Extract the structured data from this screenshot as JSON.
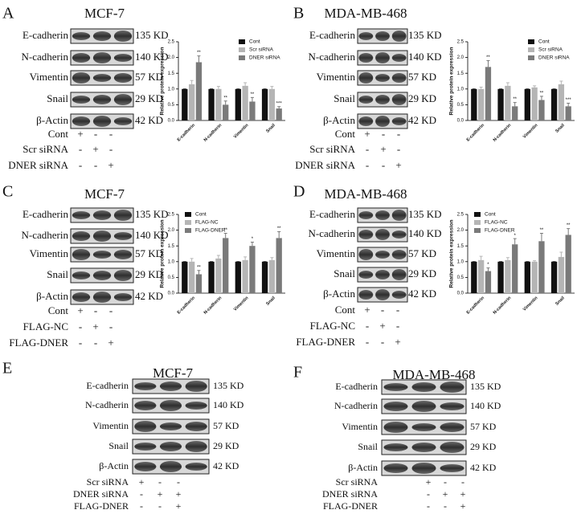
{
  "panels": [
    {
      "letter": "A",
      "title": "MCF-7",
      "proteins": [
        {
          "name": "E-cadherin",
          "size": "135 KD"
        },
        {
          "name": "N-cadherin",
          "size": "140 KD"
        },
        {
          "name": "Vimentin",
          "size": "57 KD"
        },
        {
          "name": "Snail",
          "size": "29 KD"
        },
        {
          "name": "β-Actin",
          "size": "42 KD"
        }
      ],
      "conditions": [
        {
          "label": "Cont",
          "signs": [
            "+",
            "-",
            "-"
          ]
        },
        {
          "label": "Scr siRNA",
          "signs": [
            "-",
            "+",
            "-"
          ]
        },
        {
          "label": "DNER siRNA",
          "signs": [
            "-",
            "-",
            "+"
          ]
        }
      ]
    },
    {
      "letter": "B",
      "title": "MDA-MB-468",
      "proteins": [
        {
          "name": "E-cadherin",
          "size": "135 KD"
        },
        {
          "name": "N-cadherin",
          "size": "140 KD"
        },
        {
          "name": "Vimentin",
          "size": "57 KD"
        },
        {
          "name": "Snail",
          "size": "29 KD"
        },
        {
          "name": "β-Actin",
          "size": "42 KD"
        }
      ],
      "conditions": [
        {
          "label": "Cont",
          "signs": [
            "+",
            "-",
            "-"
          ]
        },
        {
          "label": "Scr siRNA",
          "signs": [
            "-",
            "+",
            "-"
          ]
        },
        {
          "label": "DNER siRNA",
          "signs": [
            "-",
            "-",
            "+"
          ]
        }
      ]
    },
    {
      "letter": "C",
      "title": "MCF-7",
      "proteins": [
        {
          "name": "E-cadherin",
          "size": "135 KD"
        },
        {
          "name": "N-cadherin",
          "size": "140 KD"
        },
        {
          "name": "Vimentin",
          "size": "57 KD"
        },
        {
          "name": "Snail",
          "size": "29 KD"
        },
        {
          "name": "β-Actin",
          "size": "42 KD"
        }
      ],
      "conditions": [
        {
          "label": "Cont",
          "signs": [
            "+",
            "-",
            "-"
          ]
        },
        {
          "label": "FLAG-NC",
          "signs": [
            "-",
            "+",
            "-"
          ]
        },
        {
          "label": "FLAG-DNER",
          "signs": [
            "-",
            "-",
            "+"
          ]
        }
      ]
    },
    {
      "letter": "D",
      "title": "MDA-MB-468",
      "proteins": [
        {
          "name": "E-cadherin",
          "size": "135 KD"
        },
        {
          "name": "N-cadherin",
          "size": "140 KD"
        },
        {
          "name": "Vimentin",
          "size": "57 KD"
        },
        {
          "name": "Snail",
          "size": "29 KD"
        },
        {
          "name": "β-Actin",
          "size": "42 KD"
        }
      ],
      "conditions": [
        {
          "label": "Cont",
          "signs": [
            "+",
            "-",
            "-"
          ]
        },
        {
          "label": "FLAG-NC",
          "signs": [
            "-",
            "+",
            "-"
          ]
        },
        {
          "label": "FLAG-DNER",
          "signs": [
            "-",
            "-",
            "+"
          ]
        }
      ]
    },
    {
      "letter": "E",
      "title": "MCF-7",
      "proteins": [
        {
          "name": "E-cadherin",
          "size": "135 KD"
        },
        {
          "name": "N-cadherin",
          "size": "140 KD"
        },
        {
          "name": "Vimentin",
          "size": "57 KD"
        },
        {
          "name": "Snail",
          "size": "29 KD"
        },
        {
          "name": "β-Actin",
          "size": "42 KD"
        }
      ],
      "conditions": [
        {
          "label": "Scr siRNA",
          "signs": [
            "+",
            "-",
            "-"
          ]
        },
        {
          "label": "DNER siRNA",
          "signs": [
            "-",
            "+",
            "+"
          ]
        },
        {
          "label": "FLAG-DNER",
          "signs": [
            "-",
            "-",
            "+"
          ]
        }
      ]
    },
    {
      "letter": "F",
      "title": "MDA-MB-468",
      "proteins": [
        {
          "name": "E-cadherin",
          "size": "135 KD"
        },
        {
          "name": "N-cadherin",
          "size": "140 KD"
        },
        {
          "name": "Vimentin",
          "size": "57 KD"
        },
        {
          "name": "Snail",
          "size": "29 KD"
        },
        {
          "name": "β-Actin",
          "size": "42 KD"
        }
      ],
      "conditions": [
        {
          "label": "Scr siRNA",
          "signs": [
            "+",
            "-",
            "-"
          ]
        },
        {
          "label": "DNER siRNA",
          "signs": [
            "-",
            "+",
            "+"
          ]
        },
        {
          "label": "FLAG-DNER",
          "signs": [
            "-",
            "-",
            "+"
          ]
        }
      ]
    }
  ],
  "chart_data": [
    {
      "type": "bar",
      "y_label": "Relative protein expression",
      "legend": "upper right",
      "categories": [
        "E-cadherin",
        "N-cadherin",
        "Vimentin",
        "Snail"
      ],
      "ylim": [
        0,
        2.5
      ],
      "yticks": [
        {
          "value": 0,
          "label": "0.0"
        },
        0.5,
        {
          "value": 1,
          "label": "1.0"
        },
        1.5,
        {
          "value": 2,
          "label": "2.0"
        },
        2.5
      ],
      "series": [
        {
          "name": "Cont",
          "color": "#111111",
          "values": [
            1,
            1,
            1,
            1
          ],
          "errors": [
            0,
            0,
            0,
            0
          ]
        },
        {
          "name": "Scr siRNA",
          "color": "#b5b5b5",
          "values": [
            1.15,
            1.0,
            1.1,
            1.0
          ],
          "errors": [
            0.12,
            0.08,
            0.1,
            0.08
          ]
        },
        {
          "name": "DNER siRNA",
          "color": "#7a7a7a",
          "values": [
            1.85,
            0.5,
            0.6,
            0.38
          ],
          "errors": [
            0.2,
            0.12,
            0.13,
            0.06
          ],
          "significance": [
            "**",
            "**",
            "**",
            "***"
          ]
        }
      ]
    },
    {
      "type": "bar",
      "y_label": "Relative protein expression",
      "legend": "upper right",
      "categories": [
        "E-cadherin",
        "N-cadherin",
        "Vimentin",
        "Snail"
      ],
      "ylim": [
        0,
        2.5
      ],
      "yticks": [
        {
          "value": 0,
          "label": "0.0"
        },
        0.5,
        {
          "value": 1,
          "label": "1.0"
        },
        1.5,
        {
          "value": 2,
          "label": "2.0"
        },
        2.5
      ],
      "series": [
        {
          "name": "Cont",
          "color": "#111111",
          "values": [
            1,
            1,
            1,
            1
          ],
          "errors": [
            0,
            0,
            0,
            0
          ]
        },
        {
          "name": "Scr siRNA",
          "color": "#b5b5b5",
          "values": [
            1.0,
            1.1,
            1.05,
            1.15
          ],
          "errors": [
            0.06,
            0.1,
            0.05,
            0.1
          ]
        },
        {
          "name": "DNER siRNA",
          "color": "#7a7a7a",
          "values": [
            1.7,
            0.45,
            0.65,
            0.45
          ],
          "errors": [
            0.2,
            0.12,
            0.12,
            0.1
          ],
          "significance": [
            "**",
            "**",
            "**",
            "***"
          ]
        }
      ]
    },
    {
      "type": "bar",
      "y_label": "Relative protein expression",
      "legend": "upper left",
      "categories": [
        "E-cadherin",
        "N-cadherin",
        "Vimentin",
        "Snail"
      ],
      "ylim": [
        0,
        2.5
      ],
      "yticks": [
        {
          "value": 0,
          "label": "0.0"
        },
        0.5,
        {
          "value": 1,
          "label": "1.0"
        },
        1.5,
        {
          "value": 2,
          "label": "2.0"
        },
        2.5
      ],
      "series": [
        {
          "name": "Cont",
          "color": "#111111",
          "values": [
            1,
            1,
            1,
            1
          ],
          "errors": [
            0,
            0,
            0,
            0
          ]
        },
        {
          "name": "FLAG-NC",
          "color": "#b5b5b5",
          "values": [
            1.0,
            1.1,
            1.05,
            1.05
          ],
          "errors": [
            0.1,
            0.1,
            0.1,
            0.08
          ]
        },
        {
          "name": "FLAG-DNER",
          "color": "#7a7a7a",
          "values": [
            0.6,
            1.75,
            1.5,
            1.75
          ],
          "errors": [
            0.12,
            0.15,
            0.12,
            0.2
          ],
          "significance": [
            "**",
            "**",
            "*",
            "**"
          ]
        }
      ]
    },
    {
      "type": "bar",
      "y_label": "Relative protein expression",
      "legend": "upper left",
      "categories": [
        "E-cadherin",
        "N-cadherin",
        "Vimentin",
        "Snail"
      ],
      "ylim": [
        0,
        2.5
      ],
      "yticks": [
        {
          "value": 0,
          "label": "0.0"
        },
        0.5,
        {
          "value": 1,
          "label": "1.0"
        },
        1.5,
        {
          "value": 2,
          "label": "2.0"
        },
        2.5
      ],
      "series": [
        {
          "name": "Cont",
          "color": "#111111",
          "values": [
            1,
            1,
            1,
            1
          ],
          "errors": [
            0,
            0,
            0,
            0
          ]
        },
        {
          "name": "FLAG-NC",
          "color": "#b5b5b5",
          "values": [
            1.05,
            1.05,
            1.0,
            1.15
          ],
          "errors": [
            0.12,
            0.08,
            0.03,
            0.15
          ]
        },
        {
          "name": "FLAG-DNER",
          "color": "#7a7a7a",
          "values": [
            0.7,
            1.55,
            1.65,
            1.85
          ],
          "errors": [
            0.1,
            0.18,
            0.25,
            0.2
          ],
          "significance": [
            "*",
            "*",
            "**",
            "**"
          ]
        }
      ]
    }
  ]
}
